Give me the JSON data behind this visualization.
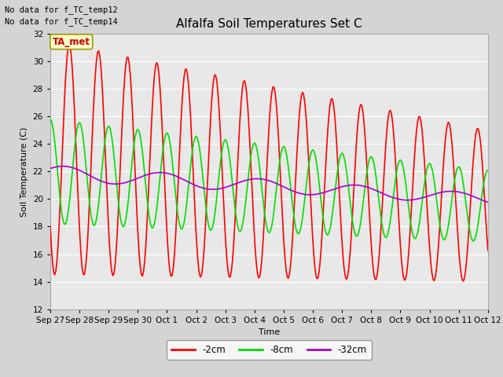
{
  "title": "Alfalfa Soil Temperatures Set C",
  "xlabel": "Time",
  "ylabel": "Soil Temperature (C)",
  "ylim": [
    12,
    32
  ],
  "yticks": [
    12,
    14,
    16,
    18,
    20,
    22,
    24,
    26,
    28,
    30,
    32
  ],
  "no_data_text": [
    "No data for f_TC_temp12",
    "No data for f_TC_temp14"
  ],
  "legend_label_box": "TA_met",
  "legend_box_facecolor": "#ffffcc",
  "legend_box_edgecolor": "#999900",
  "x_tick_labels": [
    "Sep 27",
    "Sep 28",
    "Sep 29",
    "Sep 30",
    "Oct 1",
    "Oct 2",
    "Oct 3",
    "Oct 4",
    "Oct 5",
    "Oct 6",
    "Oct 7",
    "Oct 8",
    "Oct 9",
    "Oct 10",
    "Oct 11",
    "Oct 12"
  ],
  "colors": {
    "2cm": "#ff0000",
    "8cm": "#00dd00",
    "32cm": "#aa00cc"
  },
  "fig_facecolor": "#d4d4d4",
  "plot_bg_color": "#e8e8e8",
  "grid_color": "#ffffff",
  "line_width": 1.2
}
